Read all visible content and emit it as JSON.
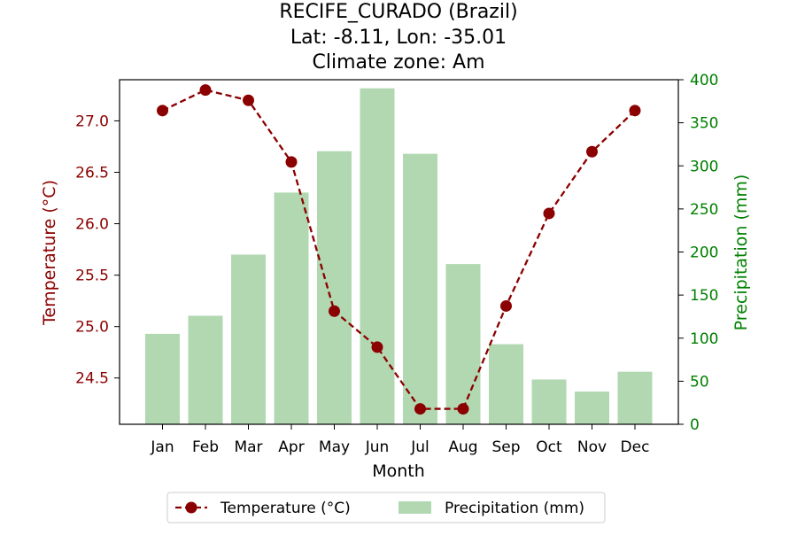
{
  "chart_data": {
    "type": "bar+line",
    "title_lines": [
      "RECIFE_CURADO (Brazil)",
      "Lat: -8.11, Lon: -35.01",
      "Climate zone: Am"
    ],
    "xlabel": "Month",
    "categories": [
      "Jan",
      "Feb",
      "Mar",
      "Apr",
      "May",
      "Jun",
      "Jul",
      "Aug",
      "Sep",
      "Oct",
      "Nov",
      "Dec"
    ],
    "left_axis": {
      "label": "Temperature (°C)",
      "color": "#8b0000",
      "ylim": [
        24.05,
        27.4
      ],
      "ticks": [
        24.5,
        25.0,
        25.5,
        26.0,
        26.5,
        27.0
      ],
      "tick_labels": [
        "24.5",
        "25.0",
        "25.5",
        "26.0",
        "26.5",
        "27.0"
      ]
    },
    "right_axis": {
      "label": "Precipitation (mm)",
      "color": "#008000",
      "ylim": [
        0,
        400
      ],
      "ticks": [
        0,
        50,
        100,
        150,
        200,
        250,
        300,
        350,
        400
      ],
      "tick_labels": [
        "0",
        "50",
        "100",
        "150",
        "200",
        "250",
        "300",
        "350",
        "400"
      ]
    },
    "series": [
      {
        "name": "Temperature (°C)",
        "type": "line",
        "axis": "left",
        "color": "#8b0000",
        "style": "dashed, circle markers",
        "values": [
          27.1,
          27.3,
          27.2,
          26.6,
          25.15,
          24.8,
          24.2,
          24.2,
          25.2,
          26.1,
          26.7,
          27.1
        ]
      },
      {
        "name": "Precipitation (mm)",
        "type": "bar",
        "axis": "right",
        "color": "#b2d8b2",
        "values": [
          105,
          126,
          197,
          269,
          317,
          390,
          314,
          186,
          93,
          52,
          38,
          61
        ]
      }
    ],
    "legend": {
      "placement": "bottom-center",
      "entries": [
        "Temperature (°C)",
        "Precipitation (mm)"
      ]
    },
    "grid": false
  }
}
